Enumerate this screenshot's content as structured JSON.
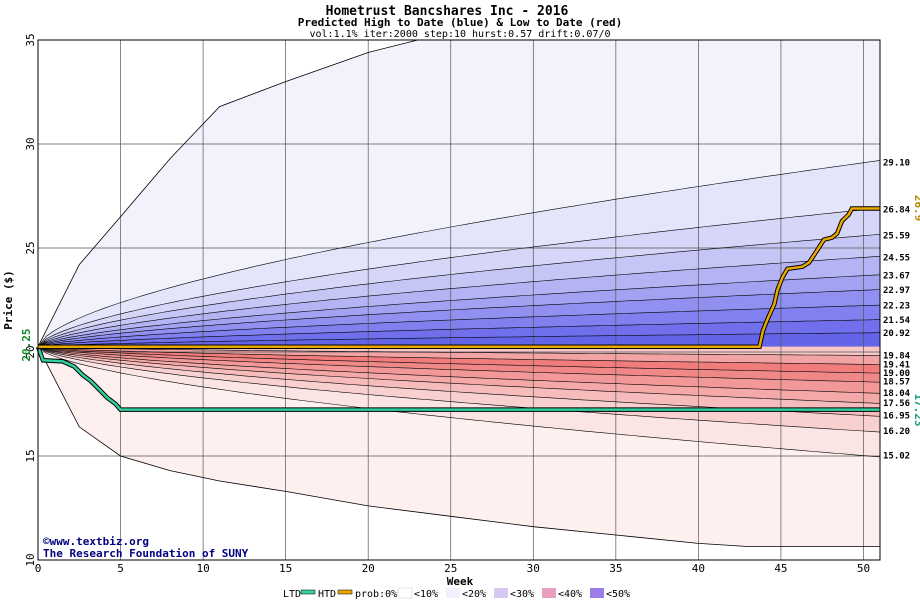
{
  "chart_data": {
    "type": "area",
    "title": "Hometrust Bancshares Inc - 2016",
    "subtitle": "Predicted High to Date (blue) &  Low to Date (red)",
    "params": "vol:1.1% iter:2000 step:10 hurst:0.57 drift:0.07/0",
    "xlabel": "Week",
    "ylabel": "Price ($)",
    "xlim": [
      0,
      51
    ],
    "ylim": [
      10,
      35
    ],
    "x_ticks": [
      0,
      5,
      10,
      15,
      20,
      25,
      30,
      35,
      40,
      45,
      50
    ],
    "y_ticks": [
      10,
      15,
      20,
      25,
      30,
      35
    ],
    "grid": true,
    "start_price": 20.25,
    "start_price_label": "20.25",
    "colors": {
      "blue_band": "#6464f0",
      "red_band": "#f06464",
      "htd_line": "#e8a800",
      "ltd_line": "#30d0a0",
      "htd_label": "#b88a00",
      "ltd_label": "#20a080"
    },
    "upper_levels": [
      {
        "label": "29.10",
        "end": 29.1,
        "shape": 0.62
      },
      {
        "label": "26.84",
        "end": 26.84,
        "shape": 0.62
      },
      {
        "label": "25.59",
        "end": 25.59,
        "shape": 0.62
      },
      {
        "label": "24.55",
        "end": 24.55,
        "shape": 0.62
      },
      {
        "label": "23.67",
        "end": 23.67,
        "shape": 0.62
      },
      {
        "label": "22.97",
        "end": 22.97,
        "shape": 0.62
      },
      {
        "label": "22.23",
        "end": 22.23,
        "shape": 0.62
      },
      {
        "label": "21.54",
        "end": 21.54,
        "shape": 0.62
      },
      {
        "label": "20.92",
        "end": 20.92,
        "shape": 0.62
      }
    ],
    "lower_levels": [
      {
        "label": "19.84",
        "end": 19.84,
        "shape": 0.62
      },
      {
        "label": "19.41",
        "end": 19.41,
        "shape": 0.62
      },
      {
        "label": "19.00",
        "end": 19.0,
        "shape": 0.62
      },
      {
        "label": "18.57",
        "end": 18.57,
        "shape": 0.62
      },
      {
        "label": "18.04",
        "end": 18.04,
        "shape": 0.62
      },
      {
        "label": "17.56",
        "end": 17.56,
        "shape": 0.62
      },
      {
        "label": "16.95",
        "end": 16.95,
        "shape": 0.62
      },
      {
        "label": "16.20",
        "end": 16.2,
        "shape": 0.62
      },
      {
        "label": "15.02",
        "end": 15.02,
        "shape": 0.62
      }
    ],
    "outer_upper": [
      [
        0,
        20.25
      ],
      [
        2.5,
        24.2
      ],
      [
        5,
        26.5
      ],
      [
        8,
        29.3
      ],
      [
        11,
        31.8
      ],
      [
        15,
        33.0
      ],
      [
        20,
        34.4
      ],
      [
        23,
        35.0
      ]
    ],
    "outer_lower": [
      [
        0,
        20.25
      ],
      [
        2.5,
        16.4
      ],
      [
        5,
        15.0
      ],
      [
        8,
        14.3
      ],
      [
        11,
        13.8
      ],
      [
        15,
        13.3
      ],
      [
        20,
        12.6
      ],
      [
        25,
        12.1
      ],
      [
        30,
        11.6
      ],
      [
        35,
        11.2
      ],
      [
        40,
        10.8
      ],
      [
        43,
        10.65
      ],
      [
        51,
        10.65
      ]
    ],
    "htd_path": [
      [
        0,
        20.25
      ],
      [
        43.7,
        20.25
      ],
      [
        43.9,
        21.0
      ],
      [
        44.2,
        21.6
      ],
      [
        44.6,
        22.3
      ],
      [
        44.8,
        23.0
      ],
      [
        45.1,
        23.6
      ],
      [
        45.4,
        24.0
      ],
      [
        46.3,
        24.1
      ],
      [
        46.7,
        24.3
      ],
      [
        47.2,
        24.9
      ],
      [
        47.6,
        25.4
      ],
      [
        48.1,
        25.5
      ],
      [
        48.4,
        25.7
      ],
      [
        48.7,
        26.3
      ],
      [
        49.1,
        26.6
      ],
      [
        49.3,
        26.9
      ],
      [
        51,
        26.9
      ]
    ],
    "ltd_path": [
      [
        0,
        20.25
      ],
      [
        0.3,
        19.6
      ],
      [
        1.5,
        19.55
      ],
      [
        2.2,
        19.3
      ],
      [
        2.7,
        18.9
      ],
      [
        3.2,
        18.6
      ],
      [
        3.7,
        18.2
      ],
      [
        4.2,
        17.8
      ],
      [
        4.7,
        17.5
      ],
      [
        5,
        17.23
      ],
      [
        51,
        17.23
      ]
    ],
    "htd_value_label": "26.9",
    "ltd_value_label": "17.23",
    "legend": {
      "ltd": "LTD",
      "htd": "HTD",
      "prob": "prob:0%",
      "b10": "<10%",
      "b20": "<20%",
      "b30": "<30%",
      "b40": "<40%",
      "b50": "<50%"
    },
    "credit_line1": "©www.textbiz.org",
    "credit_line2": "The Research Foundation of SUNY"
  }
}
